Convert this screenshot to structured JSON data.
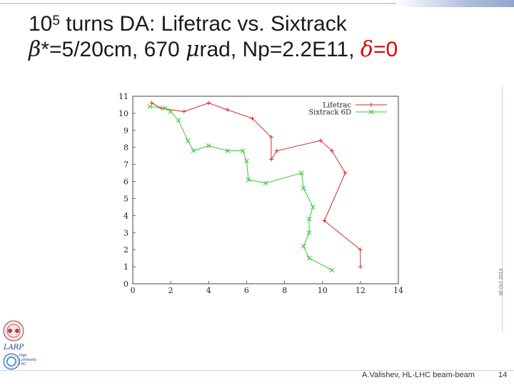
{
  "slide": {
    "title_line1_base": "10",
    "title_line1_exp": "5",
    "title_line1_rest": " turns DA: Lifetrac vs. Sixtrack",
    "beta_symbol": "β",
    "title_line2_mid": "*=5/20cm, 670 ",
    "mu_symbol": "μ",
    "title_line2_rest": "rad, Np=2.2E11, ",
    "delta_symbol": "δ",
    "delta_value": "=0",
    "side_date": "30 Oct 2013",
    "footer": "A.Valishev, HL-LHC beam-beam",
    "slide_number": "14",
    "logo_larp_text": "LARP",
    "logo_lhc_lines": [
      "High",
      "Luminosity",
      "LHC"
    ],
    "colors": {
      "lifetrac": "#d62a2a",
      "sixtrack": "#39c639",
      "title_red": "#e00000"
    }
  },
  "chart_data": {
    "type": "line",
    "xlim": [
      0,
      14
    ],
    "ylim": [
      0,
      11
    ],
    "x_ticks": [
      0,
      2,
      4,
      6,
      8,
      10,
      12,
      14
    ],
    "y_ticks": [
      0,
      1,
      2,
      3,
      4,
      5,
      6,
      7,
      8,
      9,
      10,
      11
    ],
    "legend_position": "top-right",
    "grid": false,
    "series": [
      {
        "name": "Lifetrac",
        "color": "#d62a2a",
        "marker": "+",
        "points": [
          [
            12.0,
            1.0
          ],
          [
            12.0,
            2.0
          ],
          [
            10.1,
            3.7
          ],
          [
            11.2,
            6.5
          ],
          [
            10.5,
            7.8
          ],
          [
            9.9,
            8.4
          ],
          [
            7.6,
            7.8
          ],
          [
            7.3,
            7.3
          ],
          [
            7.3,
            8.6
          ],
          [
            6.3,
            9.7
          ],
          [
            5.0,
            10.2
          ],
          [
            4.0,
            10.6
          ],
          [
            2.7,
            10.1
          ],
          [
            1.5,
            10.3
          ],
          [
            1.0,
            10.6
          ]
        ]
      },
      {
        "name": "Sixtrack 6D",
        "color": "#39c639",
        "marker": "x",
        "points": [
          [
            10.5,
            0.8
          ],
          [
            9.3,
            1.5
          ],
          [
            9.0,
            2.2
          ],
          [
            9.3,
            3.0
          ],
          [
            9.3,
            3.8
          ],
          [
            9.5,
            4.5
          ],
          [
            9.0,
            5.6
          ],
          [
            8.9,
            6.5
          ],
          [
            7.0,
            5.9
          ],
          [
            6.1,
            6.1
          ],
          [
            6.0,
            7.2
          ],
          [
            5.8,
            7.8
          ],
          [
            5.0,
            7.8
          ],
          [
            4.0,
            8.1
          ],
          [
            3.2,
            7.8
          ],
          [
            2.9,
            8.4
          ],
          [
            2.4,
            9.6
          ],
          [
            2.0,
            10.1
          ],
          [
            1.7,
            10.3
          ],
          [
            0.9,
            10.4
          ]
        ]
      }
    ]
  }
}
